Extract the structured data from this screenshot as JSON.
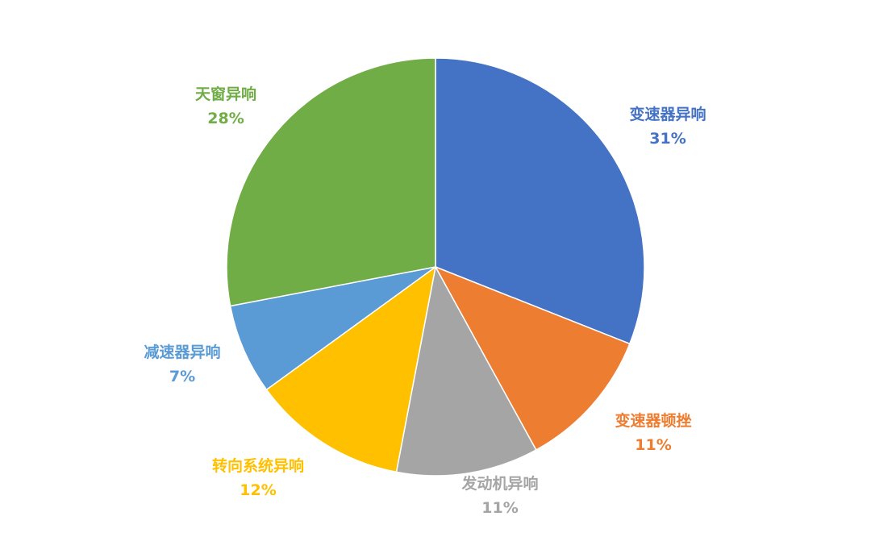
{
  "chart_data": {
    "type": "pie",
    "start_angle": "top",
    "direction": "clockwise",
    "slices": [
      {
        "label": "变速器异响",
        "value": 31,
        "display": "31%",
        "color": "#4472C4"
      },
      {
        "label": "变速器顿挫",
        "value": 11,
        "display": "11%",
        "color": "#ED7D31"
      },
      {
        "label": "发动机异响",
        "value": 11,
        "display": "11%",
        "color": "#A5A5A5"
      },
      {
        "label": "转向系统异响",
        "value": 12,
        "display": "12%",
        "color": "#FFC000"
      },
      {
        "label": "减速器异响",
        "value": 7,
        "display": "7%",
        "color": "#5B9BD5"
      },
      {
        "label": "天窗异响",
        "value": 28,
        "display": "28%",
        "color": "#70AD47"
      }
    ]
  }
}
